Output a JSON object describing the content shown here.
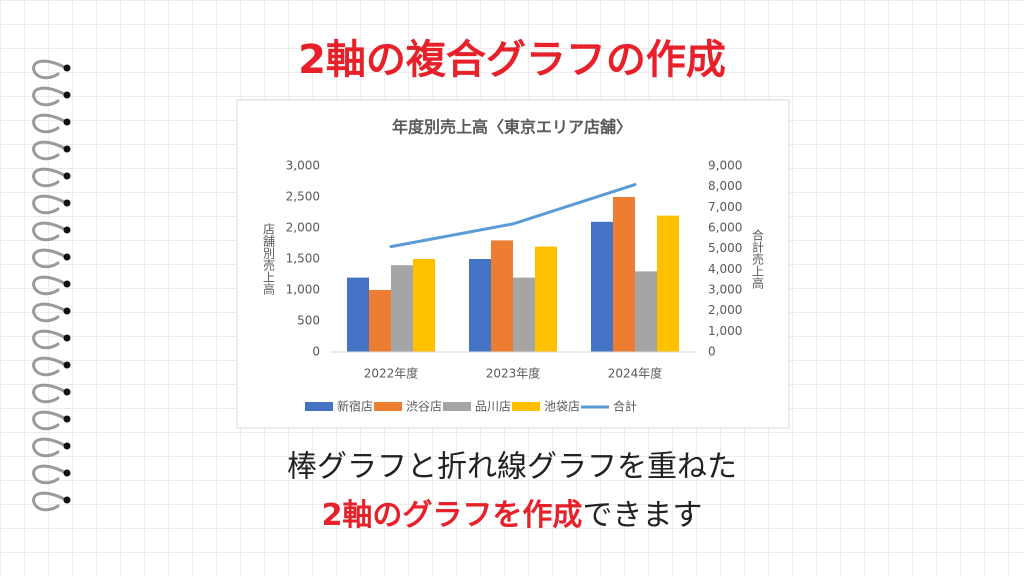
{
  "heading": {
    "prefix": "2軸の複合グラフの作成"
  },
  "caption": {
    "line1": "棒グラフと折れ線グラフを重ねた",
    "line2_highlight": "2軸のグラフを作成",
    "line2_rest": "できます"
  },
  "chart_data": {
    "type": "bar-line",
    "title": "年度別売上高〈東京エリア店舗〉",
    "categories": [
      "2022年度",
      "2023年度",
      "2024年度"
    ],
    "y_label": "店舗別売上高",
    "y2_label": "合計売上高",
    "series": [
      {
        "name": "新宿店",
        "color": "#4472c4",
        "type": "bar",
        "values": [
          1200,
          1500,
          2100
        ]
      },
      {
        "name": "渋谷店",
        "color": "#ed7d31",
        "type": "bar",
        "values": [
          1000,
          1800,
          2500
        ]
      },
      {
        "name": "品川店",
        "color": "#a5a5a5",
        "type": "bar",
        "values": [
          1400,
          1200,
          1300
        ]
      },
      {
        "name": "池袋店",
        "color": "#ffc000",
        "type": "bar",
        "values": [
          1500,
          1700,
          2200
        ]
      },
      {
        "name": "合計",
        "color": "#5b9bd5",
        "type": "line",
        "axis": "y2",
        "values": [
          5100,
          6200,
          8100
        ]
      }
    ],
    "ylim": [
      0,
      3000
    ],
    "yticks": [
      0,
      500,
      {
        "value": 1000,
        "label": "1,000"
      },
      {
        "value": 1500,
        "label": "1,500"
      },
      {
        "value": 2000,
        "label": "2,000"
      },
      {
        "value": 2500,
        "label": "2,500"
      },
      {
        "value": 3000,
        "label": "3,000"
      }
    ],
    "y2lim": [
      0,
      9000
    ],
    "y2ticks": [
      0,
      {
        "value": 1000,
        "label": "1,000"
      },
      {
        "value": 2000,
        "label": "2,000"
      },
      {
        "value": 3000,
        "label": "3,000"
      },
      {
        "value": 4000,
        "label": "4,000"
      },
      {
        "value": 5000,
        "label": "5,000"
      },
      {
        "value": 6000,
        "label": "6,000"
      },
      {
        "value": 7000,
        "label": "7,000"
      },
      {
        "value": 8000,
        "label": "8,000"
      },
      {
        "value": 9000,
        "label": "9,000"
      }
    ],
    "legend": "bottom",
    "grid": false
  }
}
